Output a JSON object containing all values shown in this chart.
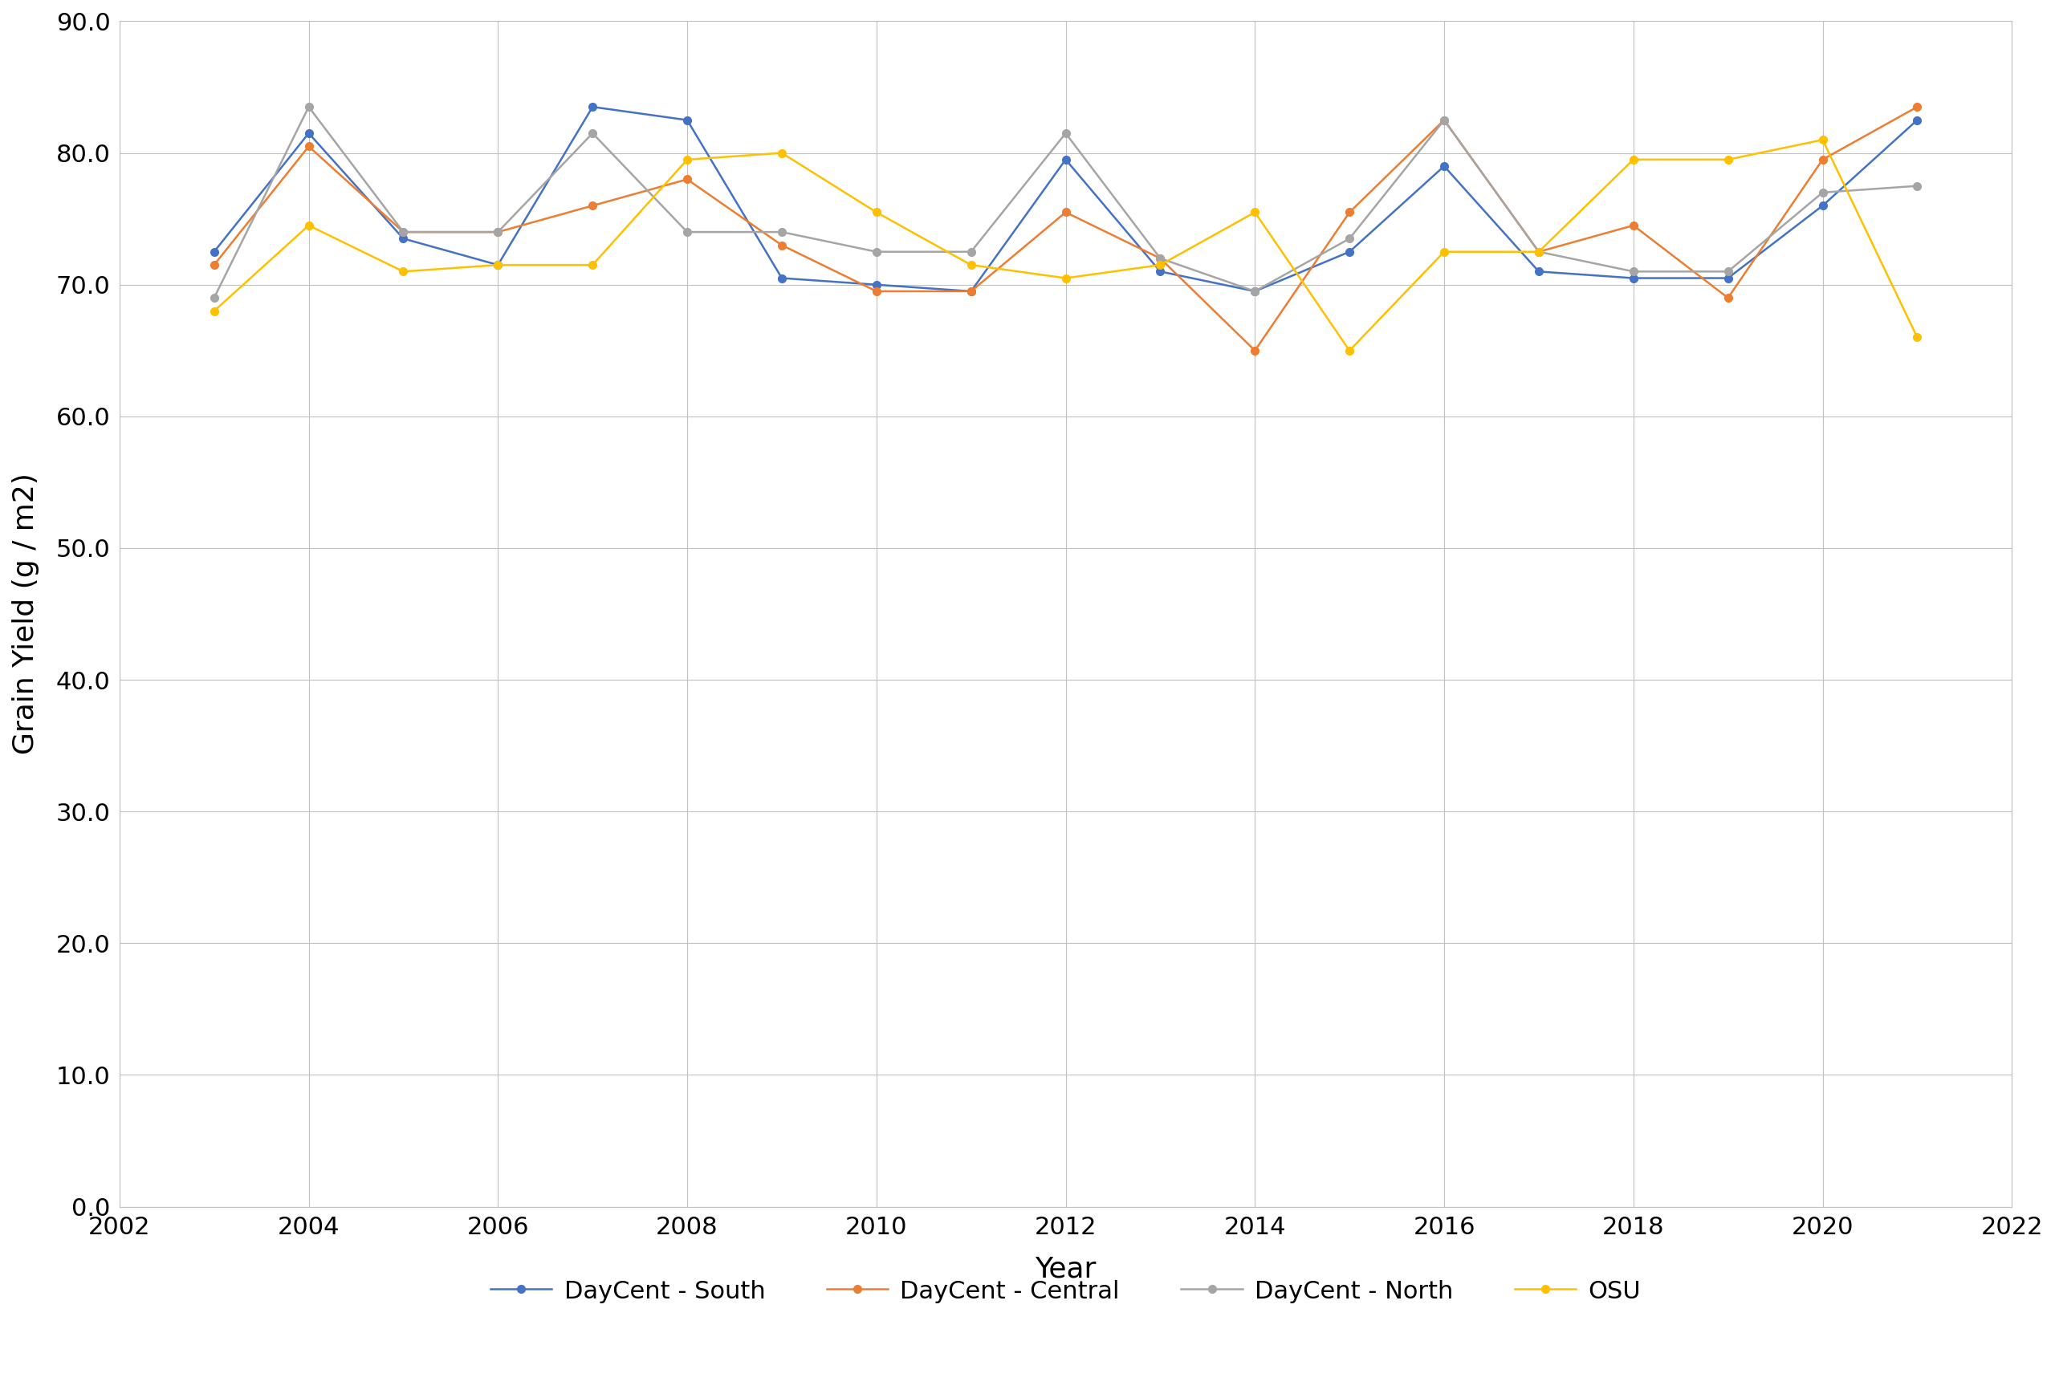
{
  "years": [
    2003,
    2004,
    2005,
    2006,
    2007,
    2008,
    2009,
    2010,
    2011,
    2012,
    2013,
    2014,
    2015,
    2016,
    2017,
    2018,
    2019,
    2020,
    2021
  ],
  "south": [
    72.5,
    81.5,
    73.5,
    71.5,
    83.5,
    82.5,
    70.5,
    70.0,
    69.5,
    79.5,
    71.0,
    69.5,
    72.5,
    79.0,
    71.0,
    70.5,
    70.5,
    76.0,
    82.5
  ],
  "central": [
    71.5,
    80.5,
    74.0,
    74.0,
    76.0,
    78.0,
    73.0,
    69.5,
    69.5,
    75.5,
    72.0,
    65.0,
    75.5,
    82.5,
    72.5,
    74.5,
    69.0,
    79.5,
    83.5
  ],
  "north": [
    69.0,
    83.5,
    74.0,
    74.0,
    81.5,
    74.0,
    74.0,
    72.5,
    72.5,
    81.5,
    72.0,
    69.5,
    73.5,
    82.5,
    72.5,
    71.0,
    71.0,
    77.0,
    77.5
  ],
  "osu": [
    68.0,
    74.5,
    71.0,
    71.5,
    71.5,
    79.5,
    80.0,
    75.5,
    71.5,
    70.5,
    71.5,
    75.5,
    65.0,
    72.5,
    72.5,
    79.5,
    79.5,
    81.0,
    66.0
  ],
  "south_color": "#4472C4",
  "central_color": "#ED7D31",
  "north_color": "#A5A5A5",
  "osu_color": "#FFC000",
  "xlabel": "Year",
  "ylabel": "Grain Yield (g / m2)",
  "ylim": [
    0.0,
    90.0
  ],
  "xlim": [
    2002,
    2022
  ],
  "yticks": [
    0.0,
    10.0,
    20.0,
    30.0,
    40.0,
    50.0,
    60.0,
    70.0,
    80.0,
    90.0
  ],
  "xticks": [
    2002,
    2004,
    2006,
    2008,
    2010,
    2012,
    2014,
    2016,
    2018,
    2020,
    2022
  ],
  "legend_labels": [
    "DayCent - South",
    "DayCent - Central",
    "DayCent - North",
    "OSU"
  ],
  "marker": "o",
  "linewidth": 1.8,
  "markersize": 7,
  "grid_color": "#C0C0C0",
  "background_color": "#FFFFFF",
  "plot_bg_color": "#FFFFFF"
}
